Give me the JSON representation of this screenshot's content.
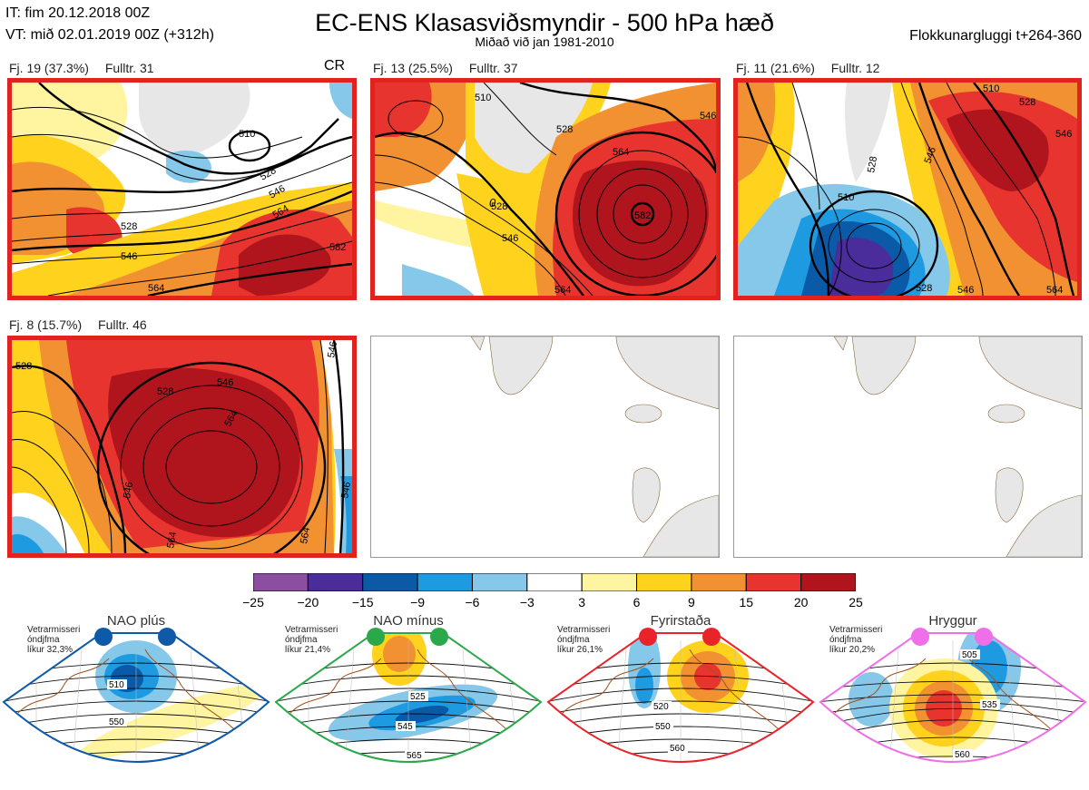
{
  "header": {
    "it_line": "IT: fim 20.12.2018 00Z",
    "vt_line": "VT: mið 02.01.2019 00Z  (+312h)",
    "title": "EC-ENS Klasasviðsmyndir - 500 hPa hæð",
    "subtitle": "Miðað við jan 1981-2010",
    "window": "Flokkunargluggi t+264-360",
    "cr": "CR"
  },
  "clusters": [
    {
      "label": "Fj. 19 (37.3%)",
      "repr": "Fulltr. 31",
      "highlight": true,
      "contours": [
        "510",
        "528",
        "546",
        "564",
        "582"
      ]
    },
    {
      "label": "Fj. 13 (25.5%)",
      "repr": "Fulltr. 37",
      "highlight": true,
      "contours": [
        "510",
        "528",
        "546",
        "564",
        "582"
      ]
    },
    {
      "label": "Fj. 11 (21.6%)",
      "repr": "Fulltr. 12",
      "highlight": true,
      "contours": [
        "510",
        "528",
        "546",
        "564"
      ]
    },
    {
      "label": "Fj. 8 (15.7%)",
      "repr": "Fulltr. 46",
      "highlight": true,
      "contours": [
        "528",
        "546",
        "564"
      ]
    }
  ],
  "colorbar": {
    "ticks": [
      "−25",
      "−20",
      "−15",
      "−9",
      "−6",
      "−3",
      "3",
      "6",
      "9",
      "15",
      "20",
      "25"
    ],
    "colors": [
      "#8b4ea0",
      "#4a2c9a",
      "#0a5aa8",
      "#1e9be0",
      "#86c8ea",
      "#ffffff",
      "#fff4a0",
      "#ffd21e",
      "#f29131",
      "#e8342e",
      "#b0141c"
    ]
  },
  "regimes": [
    {
      "name": "NAO plús",
      "season": "Vetrarmisseri",
      "stat": "óndjfma",
      "prob": "líkur 32,3%",
      "color": "#0f5aa8",
      "labels": [
        "510",
        "550"
      ]
    },
    {
      "name": "NAO mínus",
      "season": "Vetrarmisseri",
      "stat": "óndjfma",
      "prob": "líkur 21,4%",
      "color": "#2aa84a",
      "labels": [
        "525",
        "545",
        "565"
      ]
    },
    {
      "name": "Fyrirstaða",
      "season": "Vetrarmisseri",
      "stat": "óndjfma",
      "prob": "líkur 26,1%",
      "color": "#e8242a",
      "labels": [
        "520",
        "550",
        "560"
      ]
    },
    {
      "name": "Hryggur",
      "season": "Vetrarmisseri",
      "stat": "óndjfma",
      "prob": "líkur 20,2%",
      "color": "#ef6fe8",
      "labels": [
        "505",
        "535",
        "560"
      ]
    }
  ]
}
